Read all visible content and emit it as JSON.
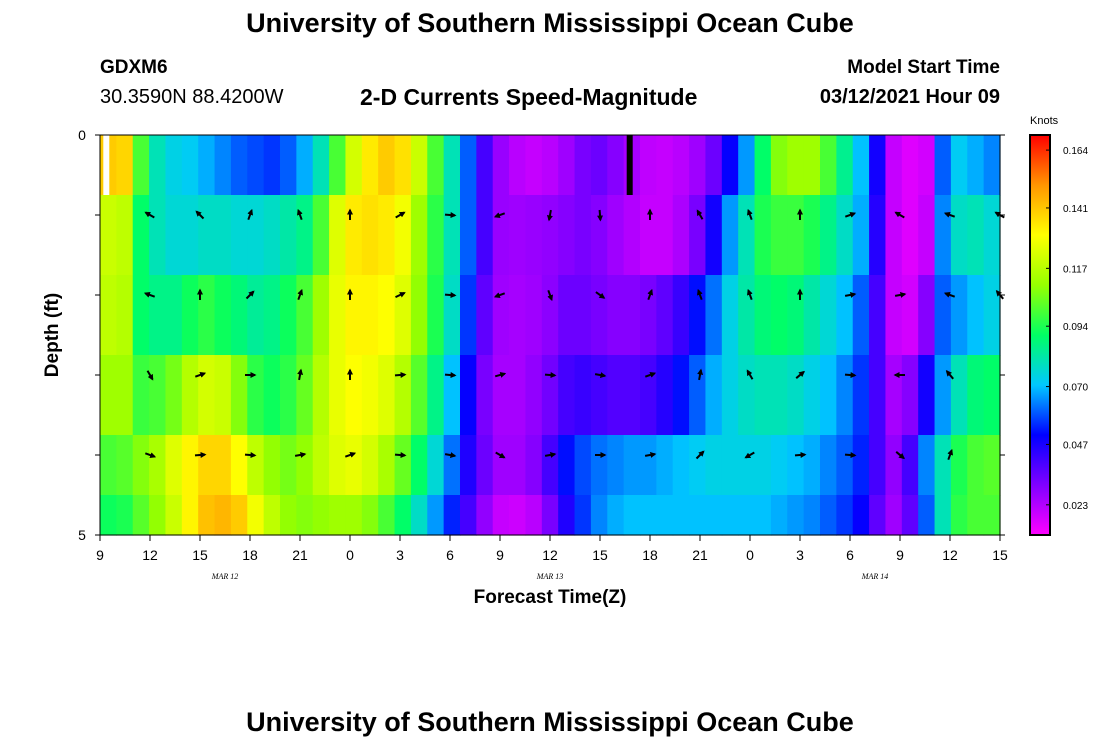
{
  "page": {
    "title": "University of Southern Mississippi Ocean Cube",
    "footer_title": "University of Southern Mississippi Ocean Cube",
    "station_id": "GDXM6",
    "station_coords": "30.3590N 88.4200W",
    "chart_title": "2-D Currents Speed-Magnitude",
    "model_start_label": "Model Start Time",
    "model_start_value": "03/12/2021 Hour 09"
  },
  "chart_data": {
    "type": "heatmap",
    "title": "2-D Currents Speed-Magnitude",
    "xlabel": "Forecast Time(Z)",
    "ylabel": "Depth (ft)",
    "colorbar_label": "Knots",
    "x_tick_labels": [
      "9",
      "12",
      "15",
      "18",
      "21",
      "0",
      "3",
      "6",
      "9",
      "12",
      "15",
      "18",
      "21",
      "0",
      "3",
      "6",
      "9",
      "12",
      "15"
    ],
    "date_labels": [
      {
        "text": "MAR 12",
        "hour_index": 7.5
      },
      {
        "text": "MAR 13",
        "hour_index": 27
      },
      {
        "text": "MAR 14",
        "hour_index": 46.5
      }
    ],
    "x_range_hours": [
      0,
      54
    ],
    "y_tick_labels": [
      "0",
      "5"
    ],
    "y_range_ft": [
      0,
      5
    ],
    "depth_layers": [
      0.25,
      1.25,
      2.25,
      3.25,
      4.25,
      4.75
    ],
    "colorbar": {
      "min": 0.011,
      "max": 0.17,
      "tick_values": [
        0.164,
        0.141,
        0.117,
        0.094,
        0.07,
        0.047,
        0.023
      ],
      "tick_labels": [
        "0.164",
        "0.141",
        "0.117",
        "0.094",
        "0.070",
        "0.047",
        "0.023"
      ],
      "colors": [
        "#ff00ff",
        "#8000ff",
        "#0000ff",
        "#00c8ff",
        "#00ff64",
        "#96ff00",
        "#ffff00",
        "#ff9600",
        "#ff0000"
      ]
    },
    "speed_knots": [
      [
        0.14,
        0.138,
        0.1,
        0.08,
        0.074,
        0.072,
        0.068,
        0.064,
        0.06,
        0.058,
        0.056,
        0.06,
        0.068,
        0.08,
        0.1,
        0.122,
        0.134,
        0.14,
        0.136,
        0.12,
        0.1,
        0.08,
        0.06,
        0.04,
        0.027,
        0.022,
        0.02,
        0.022,
        0.026,
        0.032,
        0.034,
        0.03,
        0.025,
        0.021,
        0.02,
        0.022,
        0.026,
        0.034,
        0.05,
        0.066,
        0.09,
        0.108,
        0.112,
        0.112,
        0.1,
        0.085,
        0.07,
        0.048,
        0.02,
        0.016,
        0.018,
        0.06,
        0.072,
        0.068,
        0.064
      ],
      [
        0.12,
        0.118,
        0.09,
        0.08,
        0.076,
        0.076,
        0.078,
        0.078,
        0.076,
        0.076,
        0.078,
        0.082,
        0.086,
        0.1,
        0.124,
        0.134,
        0.136,
        0.134,
        0.128,
        0.112,
        0.096,
        0.08,
        0.06,
        0.04,
        0.027,
        0.026,
        0.027,
        0.028,
        0.03,
        0.032,
        0.03,
        0.026,
        0.023,
        0.02,
        0.02,
        0.024,
        0.032,
        0.048,
        0.066,
        0.08,
        0.094,
        0.098,
        0.098,
        0.094,
        0.086,
        0.078,
        0.068,
        0.045,
        0.02,
        0.016,
        0.02,
        0.064,
        0.078,
        0.08,
        0.076
      ],
      [
        0.118,
        0.116,
        0.09,
        0.086,
        0.086,
        0.092,
        0.096,
        0.092,
        0.088,
        0.084,
        0.086,
        0.092,
        0.1,
        0.112,
        0.126,
        0.132,
        0.132,
        0.13,
        0.124,
        0.11,
        0.094,
        0.078,
        0.056,
        0.036,
        0.026,
        0.025,
        0.026,
        0.029,
        0.034,
        0.034,
        0.032,
        0.03,
        0.03,
        0.032,
        0.036,
        0.042,
        0.052,
        0.062,
        0.074,
        0.082,
        0.088,
        0.09,
        0.088,
        0.082,
        0.076,
        0.07,
        0.06,
        0.04,
        0.02,
        0.018,
        0.03,
        0.06,
        0.066,
        0.07,
        0.074
      ],
      [
        0.112,
        0.112,
        0.098,
        0.1,
        0.106,
        0.116,
        0.122,
        0.12,
        0.108,
        0.096,
        0.092,
        0.096,
        0.104,
        0.116,
        0.126,
        0.13,
        0.128,
        0.124,
        0.116,
        0.102,
        0.086,
        0.07,
        0.05,
        0.032,
        0.025,
        0.025,
        0.028,
        0.033,
        0.04,
        0.042,
        0.04,
        0.038,
        0.038,
        0.04,
        0.045,
        0.052,
        0.06,
        0.068,
        0.074,
        0.078,
        0.08,
        0.08,
        0.078,
        0.074,
        0.07,
        0.064,
        0.056,
        0.04,
        0.025,
        0.03,
        0.048,
        0.066,
        0.08,
        0.088,
        0.09
      ],
      [
        0.1,
        0.102,
        0.108,
        0.114,
        0.124,
        0.132,
        0.138,
        0.138,
        0.13,
        0.118,
        0.11,
        0.106,
        0.11,
        0.118,
        0.124,
        0.126,
        0.122,
        0.114,
        0.104,
        0.09,
        0.076,
        0.062,
        0.046,
        0.034,
        0.026,
        0.026,
        0.03,
        0.04,
        0.052,
        0.058,
        0.062,
        0.064,
        0.066,
        0.066,
        0.068,
        0.07,
        0.072,
        0.074,
        0.074,
        0.074,
        0.074,
        0.072,
        0.07,
        0.068,
        0.064,
        0.06,
        0.054,
        0.04,
        0.028,
        0.04,
        0.064,
        0.08,
        0.094,
        0.1,
        0.102
      ],
      [
        0.092,
        0.094,
        0.102,
        0.11,
        0.12,
        0.132,
        0.142,
        0.144,
        0.14,
        0.128,
        0.118,
        0.11,
        0.108,
        0.11,
        0.112,
        0.112,
        0.108,
        0.1,
        0.09,
        0.078,
        0.066,
        0.054,
        0.04,
        0.028,
        0.02,
        0.019,
        0.022,
        0.032,
        0.046,
        0.056,
        0.064,
        0.068,
        0.07,
        0.07,
        0.07,
        0.07,
        0.07,
        0.07,
        0.07,
        0.07,
        0.07,
        0.068,
        0.066,
        0.064,
        0.06,
        0.056,
        0.05,
        0.036,
        0.026,
        0.036,
        0.06,
        0.08,
        0.096,
        0.1,
        0.1
      ]
    ],
    "vectors": [
      {
        "hour": 3,
        "depth_ft": 1,
        "dir_deg": 300
      },
      {
        "hour": 6,
        "depth_ft": 1,
        "dir_deg": 315
      },
      {
        "hour": 9,
        "depth_ft": 1,
        "dir_deg": 20
      },
      {
        "hour": 12,
        "depth_ft": 1,
        "dir_deg": 340
      },
      {
        "hour": 15,
        "depth_ft": 1,
        "dir_deg": 0
      },
      {
        "hour": 18,
        "depth_ft": 1,
        "dir_deg": 60
      },
      {
        "hour": 21,
        "depth_ft": 1,
        "dir_deg": 95
      },
      {
        "hour": 24,
        "depth_ft": 1,
        "dir_deg": 250
      },
      {
        "hour": 27,
        "depth_ft": 1,
        "dir_deg": 190
      },
      {
        "hour": 30,
        "depth_ft": 1,
        "dir_deg": 175
      },
      {
        "hour": 33,
        "depth_ft": 1,
        "dir_deg": 0
      },
      {
        "hour": 36,
        "depth_ft": 1,
        "dir_deg": 330
      },
      {
        "hour": 39,
        "depth_ft": 1,
        "dir_deg": 340
      },
      {
        "hour": 42,
        "depth_ft": 1,
        "dir_deg": 0
      },
      {
        "hour": 45,
        "depth_ft": 1,
        "dir_deg": 70
      },
      {
        "hour": 48,
        "depth_ft": 1,
        "dir_deg": 300
      },
      {
        "hour": 51,
        "depth_ft": 1,
        "dir_deg": 290
      },
      {
        "hour": 54,
        "depth_ft": 1,
        "dir_deg": 300
      },
      {
        "hour": 3,
        "depth_ft": 2,
        "dir_deg": 290
      },
      {
        "hour": 6,
        "depth_ft": 2,
        "dir_deg": 0
      },
      {
        "hour": 9,
        "depth_ft": 2,
        "dir_deg": 45
      },
      {
        "hour": 12,
        "depth_ft": 2,
        "dir_deg": 20
      },
      {
        "hour": 15,
        "depth_ft": 2,
        "dir_deg": 0
      },
      {
        "hour": 18,
        "depth_ft": 2,
        "dir_deg": 65
      },
      {
        "hour": 21,
        "depth_ft": 2,
        "dir_deg": 95
      },
      {
        "hour": 24,
        "depth_ft": 2,
        "dir_deg": 250
      },
      {
        "hour": 27,
        "depth_ft": 2,
        "dir_deg": 160
      },
      {
        "hour": 30,
        "depth_ft": 2,
        "dir_deg": 125
      },
      {
        "hour": 33,
        "depth_ft": 2,
        "dir_deg": 20
      },
      {
        "hour": 36,
        "depth_ft": 2,
        "dir_deg": 340
      },
      {
        "hour": 39,
        "depth_ft": 2,
        "dir_deg": 340
      },
      {
        "hour": 42,
        "depth_ft": 2,
        "dir_deg": 0
      },
      {
        "hour": 45,
        "depth_ft": 2,
        "dir_deg": 80
      },
      {
        "hour": 48,
        "depth_ft": 2,
        "dir_deg": 80
      },
      {
        "hour": 51,
        "depth_ft": 2,
        "dir_deg": 290
      },
      {
        "hour": 54,
        "depth_ft": 2,
        "dir_deg": 320
      },
      {
        "hour": 3,
        "depth_ft": 3,
        "dir_deg": 150
      },
      {
        "hour": 6,
        "depth_ft": 3,
        "dir_deg": 70
      },
      {
        "hour": 9,
        "depth_ft": 3,
        "dir_deg": 90
      },
      {
        "hour": 12,
        "depth_ft": 3,
        "dir_deg": 10
      },
      {
        "hour": 15,
        "depth_ft": 3,
        "dir_deg": 0
      },
      {
        "hour": 18,
        "depth_ft": 3,
        "dir_deg": 85
      },
      {
        "hour": 21,
        "depth_ft": 3,
        "dir_deg": 95
      },
      {
        "hour": 24,
        "depth_ft": 3,
        "dir_deg": 75
      },
      {
        "hour": 27,
        "depth_ft": 3,
        "dir_deg": 95
      },
      {
        "hour": 30,
        "depth_ft": 3,
        "dir_deg": 100
      },
      {
        "hour": 33,
        "depth_ft": 3,
        "dir_deg": 70
      },
      {
        "hour": 36,
        "depth_ft": 3,
        "dir_deg": 10
      },
      {
        "hour": 39,
        "depth_ft": 3,
        "dir_deg": 330
      },
      {
        "hour": 42,
        "depth_ft": 3,
        "dir_deg": 50
      },
      {
        "hour": 45,
        "depth_ft": 3,
        "dir_deg": 95
      },
      {
        "hour": 48,
        "depth_ft": 3,
        "dir_deg": 270
      },
      {
        "hour": 51,
        "depth_ft": 3,
        "dir_deg": 320
      },
      {
        "hour": 3,
        "depth_ft": 4,
        "dir_deg": 110
      },
      {
        "hour": 6,
        "depth_ft": 4,
        "dir_deg": 85
      },
      {
        "hour": 9,
        "depth_ft": 4,
        "dir_deg": 95
      },
      {
        "hour": 12,
        "depth_ft": 4,
        "dir_deg": 80
      },
      {
        "hour": 15,
        "depth_ft": 4,
        "dir_deg": 70
      },
      {
        "hour": 18,
        "depth_ft": 4,
        "dir_deg": 95
      },
      {
        "hour": 21,
        "depth_ft": 4,
        "dir_deg": 100
      },
      {
        "hour": 24,
        "depth_ft": 4,
        "dir_deg": 120
      },
      {
        "hour": 27,
        "depth_ft": 4,
        "dir_deg": 80
      },
      {
        "hour": 30,
        "depth_ft": 4,
        "dir_deg": 90
      },
      {
        "hour": 33,
        "depth_ft": 4,
        "dir_deg": 80
      },
      {
        "hour": 36,
        "depth_ft": 4,
        "dir_deg": 45
      },
      {
        "hour": 39,
        "depth_ft": 4,
        "dir_deg": 240
      },
      {
        "hour": 42,
        "depth_ft": 4,
        "dir_deg": 85
      },
      {
        "hour": 45,
        "depth_ft": 4,
        "dir_deg": 95
      },
      {
        "hour": 48,
        "depth_ft": 4,
        "dir_deg": 130
      },
      {
        "hour": 51,
        "depth_ft": 4,
        "dir_deg": 20
      }
    ],
    "missing_segments": [
      {
        "hour": 0.2,
        "depth_ft": 0.25
      },
      {
        "hour": 31.6,
        "depth_ft": 0.25
      }
    ]
  }
}
